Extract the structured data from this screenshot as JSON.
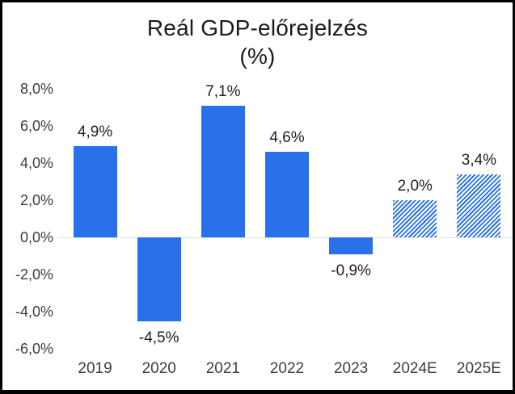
{
  "title": {
    "line1": "Reál GDP-előrejelzés",
    "line2": "(%)"
  },
  "chart_data": {
    "type": "bar",
    "title": "Reál GDP-előrejelzés (%)",
    "xlabel": "",
    "ylabel": "",
    "categories": [
      "2019",
      "2020",
      "2021",
      "2022",
      "2023",
      "2024E",
      "2025E"
    ],
    "values": [
      4.9,
      -4.5,
      7.1,
      4.6,
      -0.9,
      2.0,
      3.4
    ],
    "value_labels": [
      "4,9%",
      "-4,5%",
      "7,1%",
      "4,6%",
      "-0,9%",
      "2,0%",
      "3,4%"
    ],
    "forecast": [
      false,
      false,
      false,
      false,
      false,
      true,
      true
    ],
    "ylim": [
      -6,
      8
    ],
    "ytick_values": [
      8,
      6,
      4,
      2,
      0,
      -2,
      -4,
      -6
    ],
    "ytick_labels": [
      "8,0%",
      "6,0%",
      "4,0%",
      "2,0%",
      "0,0%",
      "-2,0%",
      "-4,0%",
      "-6,0%"
    ],
    "grid": "zero-line-only",
    "legend": "none",
    "bar_styles": [
      "solid",
      "solid",
      "solid",
      "solid",
      "solid",
      "hatched",
      "hatched"
    ]
  },
  "colors": {
    "bar_blue": "#2871e8",
    "zero_line": "#e2e2e2",
    "axis_text": "#3d3d3d",
    "data_label_text": "#1f1f1f",
    "title_text": "#1b1b1b",
    "frame": "#000000",
    "background": "#ffffff"
  }
}
